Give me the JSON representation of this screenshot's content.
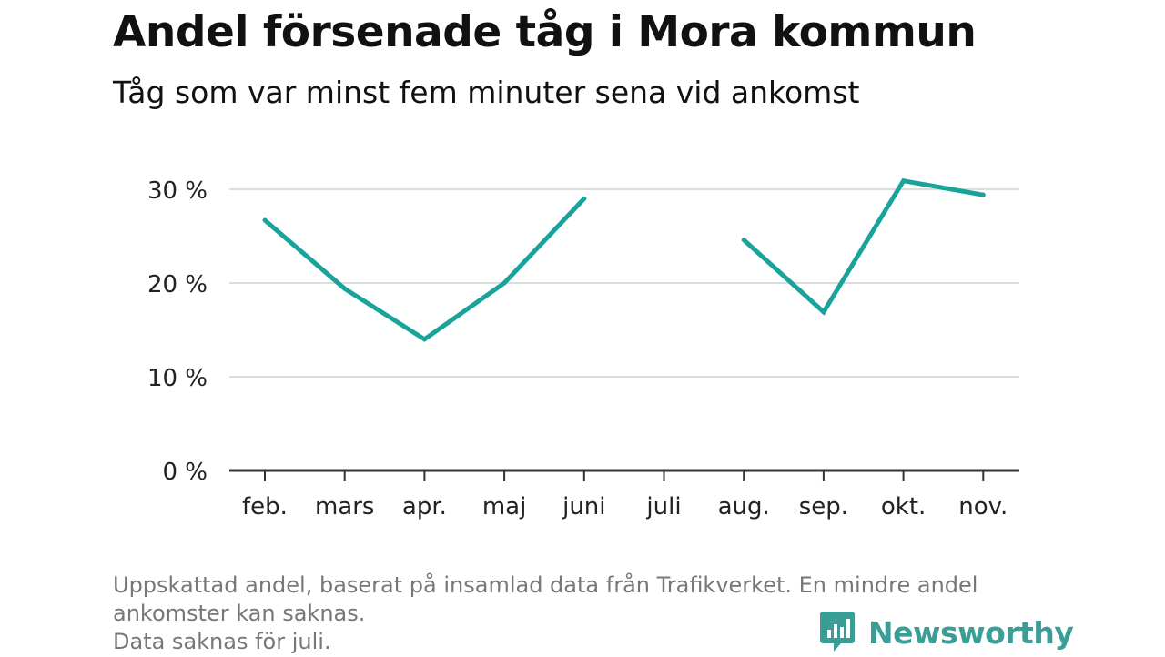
{
  "header": {
    "title": "Andel försenade tåg i Mora kommun",
    "subtitle": "Tåg som var minst fem minuter sena vid ankomst"
  },
  "footnote": {
    "line1": "Uppskattad andel, baserat på insamlad data från Trafikverket. En mindre andel",
    "line2": "ankomster kan saknas.",
    "line3": "Data saknas för juli."
  },
  "brand": {
    "name": "Newsworthy",
    "icon": "newsworthy-logo-icon",
    "color": "#3a9e96"
  },
  "chart_data": {
    "type": "line",
    "categories": [
      "feb.",
      "mars",
      "apr.",
      "maj",
      "juni",
      "juli",
      "aug.",
      "sep.",
      "okt.",
      "nov."
    ],
    "series": [
      {
        "values": [
          26.7,
          19.4,
          14.0,
          20.0,
          29.0,
          null,
          24.6,
          16.9,
          30.9,
          29.4
        ],
        "color": "#1aa39a"
      }
    ],
    "y_ticks": [
      "0 %",
      "10 %",
      "20 %",
      "30 %"
    ],
    "ylim": [
      0,
      30
    ],
    "grid": true,
    "legend": "none"
  }
}
